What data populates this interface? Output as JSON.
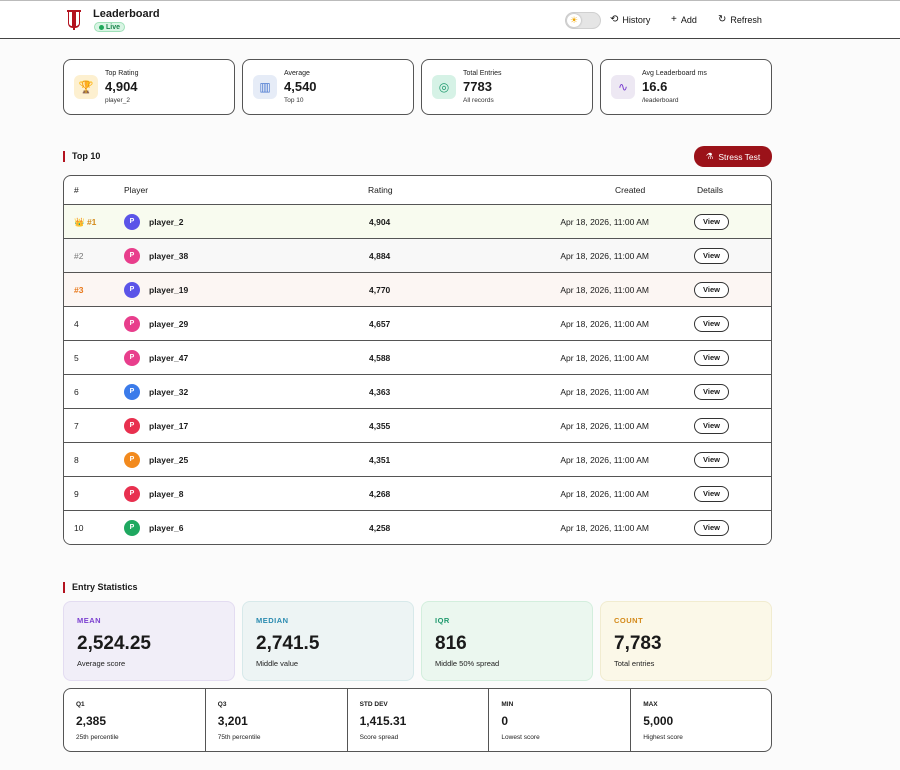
{
  "header": {
    "title": "Leaderboard",
    "live_badge": "Live",
    "theme_icon": "sun-icon",
    "nav": [
      {
        "label": "History",
        "icon": "history-icon"
      },
      {
        "label": "Add",
        "icon": "plus-icon"
      },
      {
        "label": "Refresh",
        "icon": "refresh-icon"
      }
    ],
    "colors": {
      "brand": "#b3121f",
      "live": "#1fa85a"
    }
  },
  "summary_cards": [
    {
      "label": "Top Rating",
      "value": "4,904",
      "sub": "player_2",
      "icon": "trophy-icon",
      "icon_bg": "#fdf0d0"
    },
    {
      "label": "Average",
      "value": "4,540",
      "sub": "Top 10",
      "icon": "bar-chart-icon",
      "icon_bg": "#e6ecf7"
    },
    {
      "label": "Total Entries",
      "value": "7783",
      "sub": "All records",
      "icon": "target-icon",
      "icon_bg": "#d6f2e6"
    },
    {
      "label": "Avg Leaderboard ms",
      "value": "16.6",
      "sub": "/leaderboard",
      "icon": "pulse-icon",
      "icon_bg": "#ede8f3"
    }
  ],
  "top10": {
    "title": "Top 10",
    "stress_button": "Stress Test",
    "columns": [
      "#",
      "Player",
      "Rating",
      "Created",
      "Details"
    ],
    "rows": [
      {
        "rank": "👑 #1",
        "player": "player_2",
        "avatar": "P",
        "avatar_color": "#5b54e8",
        "rating": "4,904",
        "created": "Apr 18, 2026, 11:00 AM",
        "action": "View",
        "bg": "#f8fbef",
        "rank_color": "#d48a1a"
      },
      {
        "rank": "#2",
        "player": "player_38",
        "avatar": "P",
        "avatar_color": "#e83e8c",
        "rating": "4,884",
        "created": "Apr 18, 2026, 11:00 AM",
        "action": "View",
        "bg": "#f8f8f8",
        "rank_color": "#777777"
      },
      {
        "rank": "#3",
        "player": "player_19",
        "avatar": "P",
        "avatar_color": "#5b54e8",
        "rating": "4,770",
        "created": "Apr 18, 2026, 11:00 AM",
        "action": "View",
        "bg": "#fcf6f3",
        "rank_color": "#e8781a"
      },
      {
        "rank": "4",
        "player": "player_29",
        "avatar": "P",
        "avatar_color": "#e83e8c",
        "rating": "4,657",
        "created": "Apr 18, 2026, 11:00 AM",
        "action": "View",
        "bg": "#ffffff",
        "rank_color": "#222222"
      },
      {
        "rank": "5",
        "player": "player_47",
        "avatar": "P",
        "avatar_color": "#e83e8c",
        "rating": "4,588",
        "created": "Apr 18, 2026, 11:00 AM",
        "action": "View",
        "bg": "#ffffff",
        "rank_color": "#222222"
      },
      {
        "rank": "6",
        "player": "player_32",
        "avatar": "P",
        "avatar_color": "#3b7bea",
        "rating": "4,363",
        "created": "Apr 18, 2026, 11:00 AM",
        "action": "View",
        "bg": "#ffffff",
        "rank_color": "#222222"
      },
      {
        "rank": "7",
        "player": "player_17",
        "avatar": "P",
        "avatar_color": "#e8304f",
        "rating": "4,355",
        "created": "Apr 18, 2026, 11:00 AM",
        "action": "View",
        "bg": "#ffffff",
        "rank_color": "#222222"
      },
      {
        "rank": "8",
        "player": "player_25",
        "avatar": "P",
        "avatar_color": "#f28a1e",
        "rating": "4,351",
        "created": "Apr 18, 2026, 11:00 AM",
        "action": "View",
        "bg": "#ffffff",
        "rank_color": "#222222"
      },
      {
        "rank": "9",
        "player": "player_8",
        "avatar": "P",
        "avatar_color": "#e8304f",
        "rating": "4,268",
        "created": "Apr 18, 2026, 11:00 AM",
        "action": "View",
        "bg": "#ffffff",
        "rank_color": "#222222"
      },
      {
        "rank": "10",
        "player": "player_6",
        "avatar": "P",
        "avatar_color": "#1fa860",
        "rating": "4,258",
        "created": "Apr 18, 2026, 11:00 AM",
        "action": "View",
        "bg": "#ffffff",
        "rank_color": "#222222"
      }
    ]
  },
  "entry_stats": {
    "title": "Entry Statistics",
    "cards": [
      {
        "label": "MEAN",
        "value": "2,524.25",
        "sub": "Average score",
        "color": "#7b3fd0",
        "bg": "#f1eef8",
        "border": "#e3dcf1"
      },
      {
        "label": "MEDIAN",
        "value": "2,741.5",
        "sub": "Middle value",
        "color": "#2a8bb0",
        "bg": "#edf4f4",
        "border": "#d7e9ea"
      },
      {
        "label": "IQR",
        "value": "816",
        "sub": "Middle 50% spread",
        "color": "#1f9a6e",
        "bg": "#ebf7ef",
        "border": "#d3eedd"
      },
      {
        "label": "COUNT",
        "value": "7,783",
        "sub": "Total entries",
        "color": "#d48a1a",
        "bg": "#fbf8e8",
        "border": "#f1ecd0"
      }
    ],
    "mini": [
      {
        "label": "Q1",
        "value": "2,385",
        "sub": "25th percentile"
      },
      {
        "label": "Q3",
        "value": "3,201",
        "sub": "75th percentile"
      },
      {
        "label": "STD DEV",
        "value": "1,415.31",
        "sub": "Score spread"
      },
      {
        "label": "MIN",
        "value": "0",
        "sub": "Lowest score"
      },
      {
        "label": "MAX",
        "value": "5,000",
        "sub": "Highest score"
      }
    ]
  }
}
